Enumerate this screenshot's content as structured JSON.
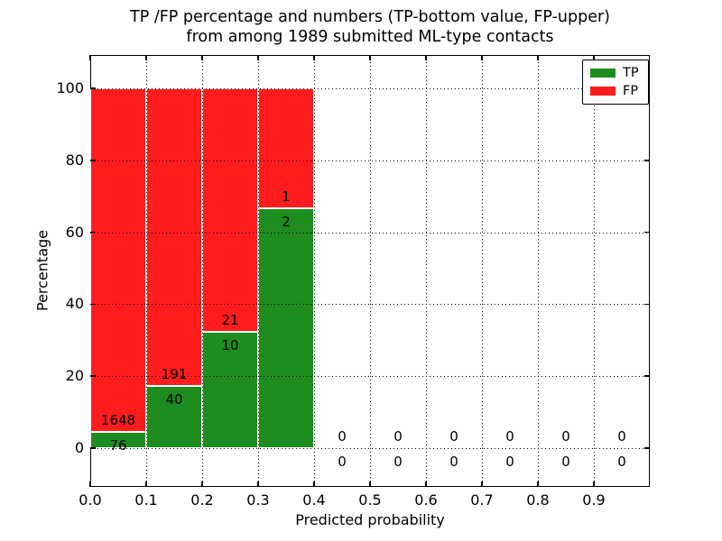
{
  "chart_data": {
    "type": "bar",
    "stacked": true,
    "title_lines": [
      "TP /FP percentage and numbers (TP-bottom value, FP-upper)",
      "from among 1989 submitted ML-type contacts"
    ],
    "xlabel": "Predicted probability",
    "ylabel": "Percentage",
    "xlim": [
      0.0,
      1.0
    ],
    "ylim": [
      -10.8,
      109.3
    ],
    "grid": true,
    "grid_style": "dotted",
    "x_ticks": [
      0.0,
      0.1,
      0.2,
      0.3,
      0.4,
      0.5,
      0.6,
      0.7,
      0.8,
      0.9
    ],
    "x_tick_labels": [
      "0.0",
      "0.1",
      "0.2",
      "0.3",
      "0.4",
      "0.5",
      "0.6",
      "0.7",
      "0.8",
      "0.9"
    ],
    "y_ticks": [
      0,
      20,
      40,
      60,
      80,
      100
    ],
    "y_tick_labels": [
      "0",
      "20",
      "40",
      "60",
      "80",
      "100"
    ],
    "legend": {
      "position": "upper-right",
      "entries": [
        {
          "label": "TP",
          "color": "#1e8c1e"
        },
        {
          "label": "FP",
          "color": "#ff1c1c"
        }
      ]
    },
    "colors": {
      "tp": "#1e8c1e",
      "fp": "#ff1c1c",
      "bar_edge": "#ffffff",
      "text": "#000000"
    },
    "total_contacts": 1989,
    "bins": [
      {
        "range": [
          0.0,
          0.1
        ],
        "tp": 76,
        "fp": 1648,
        "tp_pct": 4.41,
        "fp_pct": 95.59
      },
      {
        "range": [
          0.1,
          0.2
        ],
        "tp": 40,
        "fp": 191,
        "tp_pct": 17.32,
        "fp_pct": 82.68
      },
      {
        "range": [
          0.2,
          0.3
        ],
        "tp": 10,
        "fp": 21,
        "tp_pct": 32.26,
        "fp_pct": 67.74
      },
      {
        "range": [
          0.3,
          0.4
        ],
        "tp": 2,
        "fp": 1,
        "tp_pct": 66.67,
        "fp_pct": 33.33
      },
      {
        "range": [
          0.4,
          0.5
        ],
        "tp": 0,
        "fp": 0,
        "tp_pct": 0,
        "fp_pct": 0
      },
      {
        "range": [
          0.5,
          0.6
        ],
        "tp": 0,
        "fp": 0,
        "tp_pct": 0,
        "fp_pct": 0
      },
      {
        "range": [
          0.6,
          0.7
        ],
        "tp": 0,
        "fp": 0,
        "tp_pct": 0,
        "fp_pct": 0
      },
      {
        "range": [
          0.7,
          0.8
        ],
        "tp": 0,
        "fp": 0,
        "tp_pct": 0,
        "fp_pct": 0
      },
      {
        "range": [
          0.8,
          0.9
        ],
        "tp": 0,
        "fp": 0,
        "tp_pct": 0,
        "fp_pct": 0
      },
      {
        "range": [
          0.9,
          1.0
        ],
        "tp": 0,
        "fp": 0,
        "tp_pct": 0,
        "fp_pct": 0
      }
    ]
  }
}
